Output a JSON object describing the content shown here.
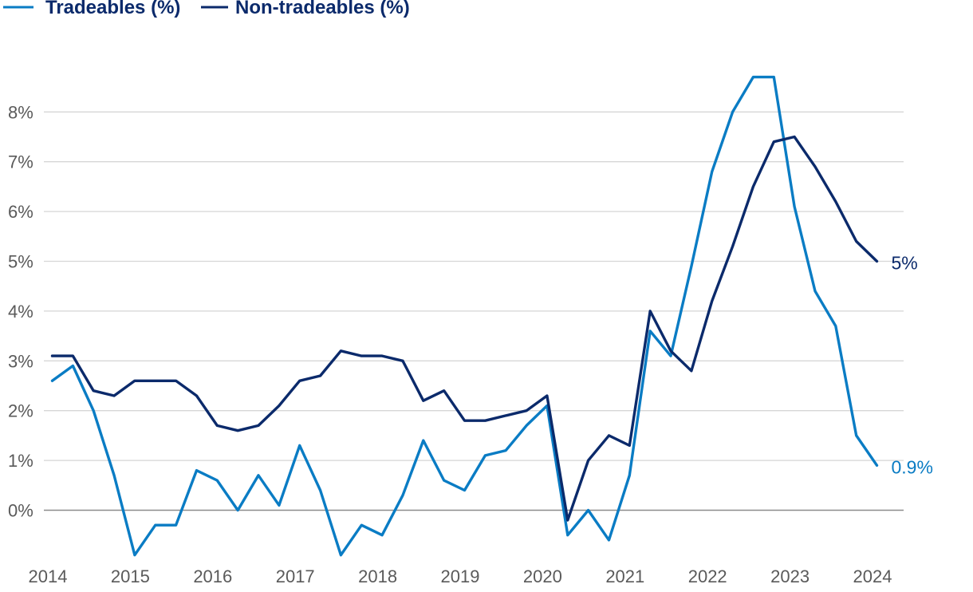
{
  "chart_data": {
    "type": "line",
    "title": "",
    "xlabel": "",
    "ylabel": "",
    "ylim": [
      -1,
      9
    ],
    "xlim": [
      2014,
      2024.5
    ],
    "grid": true,
    "legend_position": "top-left",
    "x_ticks": [
      "2014",
      "2015",
      "2016",
      "2017",
      "2018",
      "2019",
      "2020",
      "2021",
      "2022",
      "2023",
      "2024"
    ],
    "y_ticks": [
      "0%",
      "1%",
      "2%",
      "3%",
      "4%",
      "5%",
      "6%",
      "7%",
      "8%"
    ],
    "series": [
      {
        "name": "Tradeables (%)",
        "color": "#0a7cc4",
        "end_label": "0.9%",
        "points": [
          [
            2014.15,
            2.6
          ],
          [
            2014.4,
            2.9
          ],
          [
            2014.65,
            2.0
          ],
          [
            2014.9,
            0.7
          ],
          [
            2015.15,
            -0.9
          ],
          [
            2015.4,
            -0.3
          ],
          [
            2015.65,
            -0.3
          ],
          [
            2015.9,
            0.8
          ],
          [
            2016.15,
            0.6
          ],
          [
            2016.4,
            0.0
          ],
          [
            2016.65,
            0.7
          ],
          [
            2016.9,
            0.1
          ],
          [
            2017.15,
            1.3
          ],
          [
            2017.4,
            0.4
          ],
          [
            2017.65,
            -0.9
          ],
          [
            2017.9,
            -0.3
          ],
          [
            2018.15,
            -0.5
          ],
          [
            2018.4,
            0.3
          ],
          [
            2018.65,
            1.4
          ],
          [
            2018.9,
            0.6
          ],
          [
            2019.15,
            0.4
          ],
          [
            2019.4,
            1.1
          ],
          [
            2019.65,
            1.2
          ],
          [
            2019.9,
            1.7
          ],
          [
            2020.15,
            2.1
          ],
          [
            2020.4,
            -0.5
          ],
          [
            2020.65,
            0.0
          ],
          [
            2020.9,
            -0.6
          ],
          [
            2021.15,
            0.7
          ],
          [
            2021.4,
            3.6
          ],
          [
            2021.65,
            3.1
          ],
          [
            2021.9,
            4.9
          ],
          [
            2022.15,
            6.8
          ],
          [
            2022.4,
            8.0
          ],
          [
            2022.65,
            8.7
          ],
          [
            2022.9,
            8.7
          ],
          [
            2023.15,
            6.1
          ],
          [
            2023.4,
            4.4
          ],
          [
            2023.65,
            3.7
          ],
          [
            2023.9,
            1.5
          ],
          [
            2024.15,
            0.9
          ]
        ]
      },
      {
        "name": "Non-tradeables (%)",
        "color": "#0b2a6b",
        "end_label": "5%",
        "points": [
          [
            2014.15,
            3.1
          ],
          [
            2014.4,
            3.1
          ],
          [
            2014.65,
            2.4
          ],
          [
            2014.9,
            2.3
          ],
          [
            2015.15,
            2.6
          ],
          [
            2015.4,
            2.6
          ],
          [
            2015.65,
            2.6
          ],
          [
            2015.9,
            2.3
          ],
          [
            2016.15,
            1.7
          ],
          [
            2016.4,
            1.6
          ],
          [
            2016.65,
            1.7
          ],
          [
            2016.9,
            2.1
          ],
          [
            2017.15,
            2.6
          ],
          [
            2017.4,
            2.7
          ],
          [
            2017.65,
            3.2
          ],
          [
            2017.9,
            3.1
          ],
          [
            2018.15,
            3.1
          ],
          [
            2018.4,
            3.0
          ],
          [
            2018.65,
            2.2
          ],
          [
            2018.9,
            2.4
          ],
          [
            2019.15,
            1.8
          ],
          [
            2019.4,
            1.8
          ],
          [
            2019.65,
            1.9
          ],
          [
            2019.9,
            2.0
          ],
          [
            2020.15,
            2.3
          ],
          [
            2020.4,
            -0.2
          ],
          [
            2020.65,
            1.0
          ],
          [
            2020.9,
            1.5
          ],
          [
            2021.15,
            1.3
          ],
          [
            2021.4,
            4.0
          ],
          [
            2021.65,
            3.2
          ],
          [
            2021.9,
            2.8
          ],
          [
            2022.15,
            4.2
          ],
          [
            2022.4,
            5.3
          ],
          [
            2022.65,
            6.5
          ],
          [
            2022.9,
            7.4
          ],
          [
            2023.15,
            7.5
          ],
          [
            2023.4,
            6.9
          ],
          [
            2023.65,
            6.2
          ],
          [
            2023.9,
            5.4
          ],
          [
            2024.15,
            5.0
          ]
        ]
      }
    ]
  }
}
